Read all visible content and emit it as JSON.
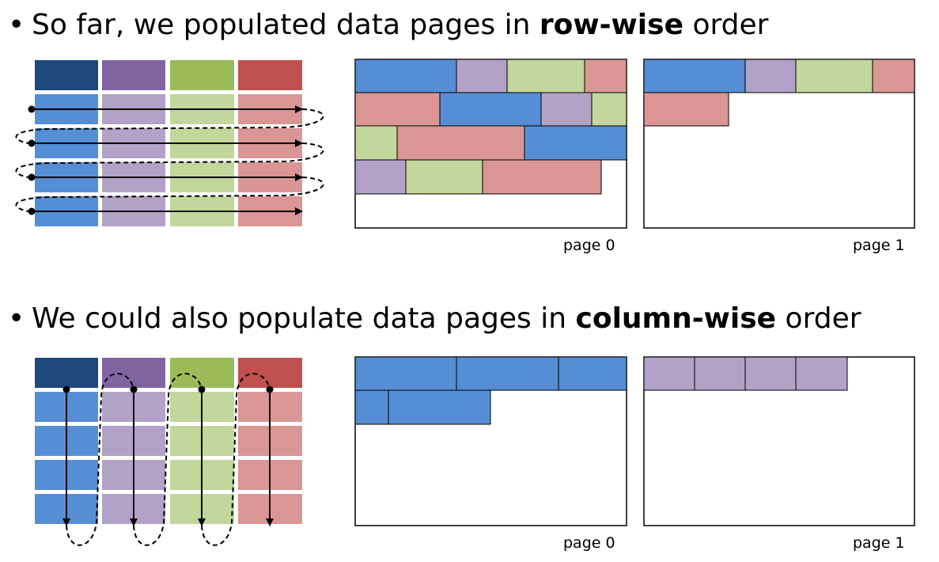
{
  "section_row": {
    "bullet_pre": "So far, we populated data pages in ",
    "bullet_bold": "row-wise",
    "bullet_post": " order",
    "page_labels": [
      "page 0",
      "page 1"
    ]
  },
  "section_col": {
    "bullet_pre": "We could also populate data pages in ",
    "bullet_bold": "column-wise",
    "bullet_post": " order",
    "page_labels": [
      "page 0",
      "page 1"
    ]
  },
  "colors": {
    "col_blue_header": "#1f497d",
    "col_purple_header": "#8064a2",
    "col_green_header": "#9bbb59",
    "col_red_header": "#c0504d",
    "blue": "#558ed5",
    "purple": "#b2a2c7",
    "green": "#c3d69b",
    "red": "#d99694",
    "arrow": "#000000"
  }
}
